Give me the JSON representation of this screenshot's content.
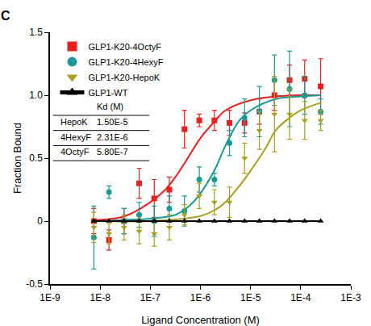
{
  "chart_data": {
    "type": "scatter",
    "panel_label": "C",
    "x_label": "Ligand Concentration (M)",
    "y_label": "Fraction Bound",
    "log": "x",
    "grid": false,
    "legend": "upper left",
    "xlim": [
      1e-09,
      0.001
    ],
    "xticks": [
      {
        "value": 1e-09,
        "label": "1E-9"
      },
      {
        "value": 1e-08,
        "label": "1E-8"
      },
      {
        "value": 1e-07,
        "label": "1E-7"
      },
      {
        "value": 1e-06,
        "label": "1E-6"
      },
      {
        "value": 1e-05,
        "label": "1E-5"
      },
      {
        "value": 0.0001,
        "label": "1E-4"
      },
      {
        "value": 0.001,
        "label": "1E-3"
      }
    ],
    "ylim": [
      -0.5,
      1.5
    ],
    "yticks": [
      -0.5,
      0,
      0.5,
      {
        "value": 1,
        "label": "1.0"
      },
      1.5
    ],
    "x": [
      7.5e-09,
      1.5e-08,
      3e-08,
      6e-08,
      1.2e-07,
      2.4e-07,
      4.8e-07,
      9.5e-07,
      1.9e-06,
      3.8e-06,
      7.6e-06,
      1.5e-05,
      3e-05,
      6e-05,
      0.00012,
      0.00025
    ],
    "kd_table": {
      "header": "Kd (M)",
      "rows": [
        [
          "HepoK",
          "1.50E-5"
        ],
        [
          "4HexyF",
          "2.31E-6"
        ],
        [
          "4OctyF",
          "5.80E-7"
        ]
      ]
    },
    "series": [
      {
        "name": "GLP1-K20-4OctyF",
        "color": "#e8201f",
        "marker": "square",
        "line_style": "solid",
        "values": [
          0.0,
          -0.15,
          0.0,
          0.3,
          0.18,
          0.25,
          0.73,
          0.8,
          0.8,
          0.78,
          0.78,
          0.87,
          1.0,
          1.12,
          1.13,
          1.07
        ],
        "errors": [
          0.1,
          0.08,
          0.1,
          0.12,
          0.15,
          0.1,
          0.15,
          0.05,
          0.08,
          0.1,
          0.08,
          0.1,
          0.12,
          0.12,
          0.15,
          0.22
        ],
        "fit": {
          "x": [
            7.5e-09,
            1e-08,
            3.16e-08,
            1e-07,
            2e-07,
            3.16e-07,
            6e-07,
            1e-06,
            2e-06,
            3.16e-06,
            1e-05,
            3.16e-05,
            0.0001,
            0.00025
          ],
          "values": [
            0.01,
            0.01,
            0.04,
            0.15,
            0.25,
            0.35,
            0.52,
            0.66,
            0.8,
            0.88,
            0.96,
            0.99,
            1.0,
            1.0
          ]
        }
      },
      {
        "name": "GLP1-K20-4HexyF",
        "color": "#1a9a94",
        "marker": "circle",
        "line_style": "solid",
        "values": [
          -0.13,
          0.23,
          0.0,
          0.05,
          0.0,
          0.1,
          0.08,
          0.33,
          0.33,
          0.62,
          0.82,
          0.87,
          1.12,
          1.05,
          1.0,
          0.87
        ],
        "errors": [
          0.25,
          0.05,
          0.1,
          0.1,
          0.12,
          0.1,
          0.12,
          0.1,
          0.05,
          0.1,
          0.15,
          0.2,
          0.2,
          0.3,
          0.15,
          0.1
        ],
        "fit": {
          "x": [
            7.5e-09,
            1e-08,
            3.16e-08,
            1e-07,
            3.16e-07,
            6e-07,
            1e-06,
            2e-06,
            3.16e-06,
            6e-06,
            1e-05,
            3.16e-05,
            0.0001,
            0.00025
          ],
          "values": [
            0.0,
            0.0,
            0.01,
            0.02,
            0.05,
            0.12,
            0.22,
            0.42,
            0.6,
            0.8,
            0.88,
            0.97,
            0.99,
            1.0
          ]
        }
      },
      {
        "name": "GLP1-K20-HepoK",
        "color": "#a8a01e",
        "marker": "triangle-down",
        "line_style": "solid",
        "values": [
          -0.05,
          -0.1,
          -0.05,
          -0.08,
          -0.1,
          -0.05,
          0.05,
          0.2,
          0.15,
          0.15,
          0.5,
          0.72,
          0.85,
          0.85,
          0.8,
          0.8
        ],
        "errors": [
          0.12,
          0.08,
          0.1,
          0.1,
          0.1,
          0.1,
          0.08,
          0.1,
          0.1,
          0.12,
          0.12,
          0.15,
          0.3,
          0.2,
          0.15,
          0.08
        ],
        "fit": {
          "x": [
            7.5e-09,
            1e-08,
            1e-07,
            1e-06,
            2e-06,
            3.16e-06,
            6e-06,
            1e-05,
            2e-05,
            3.16e-05,
            6e-05,
            0.0001,
            0.00025
          ],
          "values": [
            0.0,
            0.0,
            0.0,
            0.04,
            0.09,
            0.15,
            0.28,
            0.4,
            0.58,
            0.72,
            0.82,
            0.88,
            0.94
          ]
        }
      },
      {
        "name": "GLP1-WT",
        "color": "#000000",
        "marker": "triangle-up",
        "line_style": "solid",
        "values": [
          0,
          0,
          0,
          0,
          0,
          0,
          0,
          0,
          0,
          0,
          0,
          0,
          0,
          0,
          0,
          0
        ]
      }
    ]
  }
}
